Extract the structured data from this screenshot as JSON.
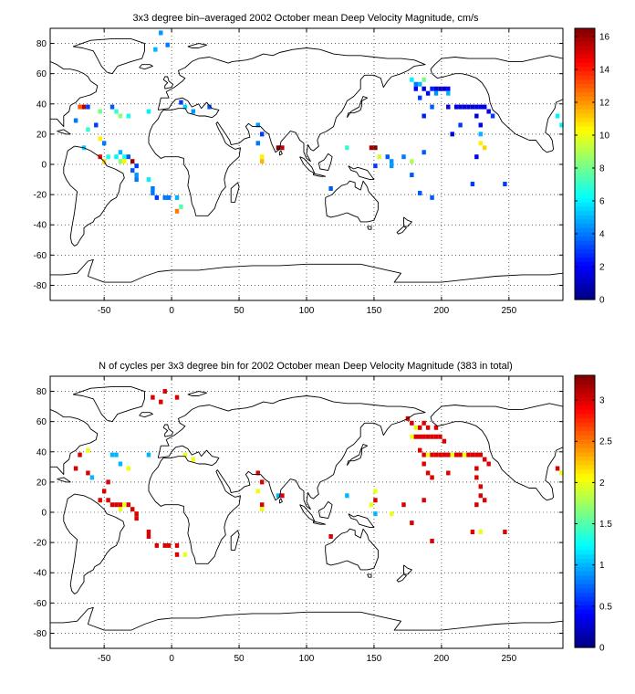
{
  "chart_data": [
    {
      "type": "heatmap",
      "title": "3x3 degree bin–averaged 2002 October mean Deep Velocity Magnitude, cm/s",
      "x_ticks": [
        "-50",
        "0",
        "50",
        "100",
        "150",
        "200",
        "250"
      ],
      "y_ticks": [
        "80",
        "60",
        "40",
        "20",
        "0",
        "-20",
        "-40",
        "-60",
        "-80"
      ],
      "xlim": [
        -90,
        290
      ],
      "ylim": [
        -90,
        90
      ],
      "grid": true,
      "colorbar": {
        "ticks": [
          "0",
          "2",
          "4",
          "6",
          "8",
          "10",
          "12",
          "14",
          "16"
        ],
        "range": [
          0,
          16.5
        ],
        "colormap": "jet"
      },
      "cells": [
        [
          -12,
          76,
          5.0
        ],
        [
          -8,
          87,
          4.5
        ],
        [
          -3,
          79,
          4.0
        ],
        [
          -68,
          38,
          13.0
        ],
        [
          -65,
          38,
          15.5
        ],
        [
          -62,
          38,
          3.0
        ],
        [
          -53,
          35,
          8.0
        ],
        [
          -44,
          38,
          3.5
        ],
        [
          -41,
          35,
          7.0
        ],
        [
          -38,
          32,
          8.5
        ],
        [
          -32,
          32,
          6.5
        ],
        [
          -56,
          26,
          3.0
        ],
        [
          -62,
          23,
          7.0
        ],
        [
          -53,
          17,
          10.5
        ],
        [
          -50,
          14,
          4.0
        ],
        [
          -65,
          11,
          5.5
        ],
        [
          -53,
          5,
          14.5
        ],
        [
          -47,
          5,
          6.5
        ],
        [
          -41,
          5,
          6.0
        ],
        [
          -35,
          5,
          6.5
        ],
        [
          -32,
          5,
          3.5
        ],
        [
          -38,
          8,
          5.0
        ],
        [
          -50,
          2,
          11.0
        ],
        [
          -38,
          2,
          8.5
        ],
        [
          -35,
          2,
          10.5
        ],
        [
          -29,
          2,
          16.0
        ],
        [
          -26,
          -1,
          3.0
        ],
        [
          -29,
          -4,
          3.5
        ],
        [
          -26,
          -7,
          4.5
        ],
        [
          -26,
          -10,
          4.0
        ],
        [
          -17,
          -10,
          6.0
        ],
        [
          -14,
          -16,
          4.0
        ],
        [
          -14,
          -19,
          4.0
        ],
        [
          -11,
          -22,
          3.0
        ],
        [
          -5,
          -22,
          4.0
        ],
        [
          -2,
          -22,
          4.0
        ],
        [
          4,
          -22,
          5.0
        ],
        [
          7,
          -28,
          7.5
        ],
        [
          4,
          -31,
          12.5
        ],
        [
          -17,
          35,
          6.0
        ],
        [
          7,
          41,
          3.0
        ],
        [
          10,
          38,
          5.5
        ],
        [
          16,
          35,
          4.5
        ],
        [
          28,
          38,
          3.5
        ],
        [
          64,
          26,
          4.5
        ],
        [
          67,
          20,
          3.0
        ],
        [
          64,
          14,
          4.0
        ],
        [
          79,
          11,
          16.5
        ],
        [
          82,
          11,
          15.5
        ],
        [
          67,
          5,
          10.5
        ],
        [
          67,
          2,
          11.5
        ],
        [
          130,
          11,
          7.0
        ],
        [
          148,
          11,
          16.0
        ],
        [
          151,
          11,
          16.5
        ],
        [
          154,
          5,
          9.5
        ],
        [
          160,
          5,
          3.5
        ],
        [
          172,
          5,
          4.0
        ],
        [
          187,
          8,
          3.5
        ],
        [
          151,
          -1,
          3.0
        ],
        [
          163,
          -1,
          4.5
        ],
        [
          118,
          -16,
          3.5
        ],
        [
          178,
          -7,
          3.5
        ],
        [
          184,
          -19,
          3.5
        ],
        [
          193,
          -22,
          3.5
        ],
        [
          223,
          -13,
          3.0
        ],
        [
          247,
          -13,
          3.0
        ],
        [
          178,
          56,
          6.0
        ],
        [
          181,
          53,
          4.0
        ],
        [
          184,
          53,
          5.0
        ],
        [
          187,
          56,
          8.0
        ],
        [
          181,
          50,
          2.0
        ],
        [
          187,
          50,
          1.5
        ],
        [
          193,
          50,
          2.5
        ],
        [
          196,
          50,
          1.5
        ],
        [
          199,
          50,
          1.0
        ],
        [
          202,
          50,
          1.5
        ],
        [
          205,
          50,
          2.0
        ],
        [
          190,
          47,
          2.0
        ],
        [
          196,
          47,
          4.5
        ],
        [
          205,
          47,
          5.0
        ],
        [
          184,
          44,
          3.0
        ],
        [
          193,
          38,
          3.5
        ],
        [
          187,
          32,
          2.5
        ],
        [
          205,
          38,
          1.5
        ],
        [
          211,
          38,
          1.5
        ],
        [
          214,
          38,
          1.5
        ],
        [
          217,
          38,
          1.5
        ],
        [
          220,
          38,
          1.5
        ],
        [
          223,
          38,
          1.5
        ],
        [
          226,
          38,
          1.5
        ],
        [
          229,
          38,
          1.5
        ],
        [
          232,
          38,
          1.5
        ],
        [
          235,
          35,
          1.5
        ],
        [
          238,
          32,
          3.0
        ],
        [
          214,
          26,
          3.0
        ],
        [
          208,
          20,
          1.5
        ],
        [
          226,
          32,
          1.5
        ],
        [
          229,
          26,
          2.0
        ],
        [
          229,
          20,
          5.0
        ],
        [
          229,
          14,
          10.5
        ],
        [
          226,
          5,
          2.0
        ],
        [
          232,
          11,
          11.0
        ],
        [
          178,
          2,
          9.0
        ],
        [
          163,
          2,
          4.5
        ],
        [
          286,
          32,
          6.0
        ],
        [
          289,
          26,
          6.0
        ],
        [
          -71,
          29,
          4.0
        ]
      ]
    },
    {
      "type": "heatmap",
      "title": "N of cycles per 3x3 degree bin for 2002 October mean Deep Velocity Magnitude (383 in total)",
      "x_ticks": [
        "-50",
        "0",
        "50",
        "100",
        "150",
        "200",
        "250"
      ],
      "y_ticks": [
        "80",
        "60",
        "40",
        "20",
        "0",
        "-20",
        "-40",
        "-60",
        "-80"
      ],
      "xlim": [
        -90,
        290
      ],
      "ylim": [
        -90,
        90
      ],
      "grid": true,
      "colorbar": {
        "ticks": [
          "0",
          "0.5",
          "1",
          "1.5",
          "2",
          "2.5",
          "3"
        ],
        "range": [
          0,
          3.3
        ],
        "colormap": "jet"
      },
      "cells": [
        [
          -14,
          76,
          3.0
        ],
        [
          -8,
          73,
          3.0
        ],
        [
          -5,
          80,
          3.0
        ],
        [
          4,
          76,
          3.0
        ],
        [
          -68,
          38,
          3.0
        ],
        [
          -62,
          41,
          2.0
        ],
        [
          -44,
          38,
          1.0
        ],
        [
          -41,
          38,
          1.0
        ],
        [
          -38,
          32,
          1.0
        ],
        [
          -32,
          29,
          2.0
        ],
        [
          -59,
          23,
          1.0
        ],
        [
          -47,
          20,
          3.0
        ],
        [
          -50,
          14,
          3.0
        ],
        [
          -53,
          8,
          3.0
        ],
        [
          -47,
          8,
          3.0
        ],
        [
          -44,
          5,
          3.0
        ],
        [
          -41,
          5,
          3.0
        ],
        [
          -38,
          5,
          3.0
        ],
        [
          -35,
          5,
          2.0
        ],
        [
          -32,
          5,
          3.0
        ],
        [
          -38,
          2,
          2.0
        ],
        [
          -29,
          2,
          3.0
        ],
        [
          -26,
          -1,
          3.0
        ],
        [
          -26,
          -4,
          3.0
        ],
        [
          -17,
          -13,
          3.0
        ],
        [
          -17,
          -16,
          3.0
        ],
        [
          -11,
          -22,
          3.0
        ],
        [
          -5,
          -22,
          3.0
        ],
        [
          -2,
          -22,
          3.0
        ],
        [
          4,
          -22,
          3.0
        ],
        [
          4,
          -28,
          3.0
        ],
        [
          10,
          -28,
          2.0
        ],
        [
          -17,
          38,
          1.0
        ],
        [
          10,
          38,
          2.0
        ],
        [
          16,
          35,
          2.0
        ],
        [
          64,
          26,
          3.0
        ],
        [
          67,
          20,
          3.0
        ],
        [
          64,
          14,
          2.0
        ],
        [
          79,
          11,
          1.0
        ],
        [
          82,
          11,
          3.0
        ],
        [
          67,
          5,
          3.0
        ],
        [
          67,
          2,
          2.0
        ],
        [
          130,
          11,
          1.0
        ],
        [
          151,
          14,
          2.0
        ],
        [
          151,
          8,
          3.0
        ],
        [
          148,
          5,
          2.0
        ],
        [
          172,
          5,
          3.0
        ],
        [
          187,
          8,
          3.0
        ],
        [
          178,
          -7,
          3.0
        ],
        [
          193,
          -19,
          3.0
        ],
        [
          223,
          -13,
          3.0
        ],
        [
          229,
          -13,
          2.0
        ],
        [
          247,
          -13,
          3.0
        ],
        [
          151,
          -1,
          1.0
        ],
        [
          163,
          -1,
          2.0
        ],
        [
          118,
          -16,
          3.0
        ],
        [
          175,
          62,
          3.0
        ],
        [
          178,
          59,
          3.0
        ],
        [
          181,
          56,
          2.0
        ],
        [
          184,
          56,
          3.0
        ],
        [
          187,
          59,
          3.0
        ],
        [
          190,
          56,
          3.0
        ],
        [
          196,
          56,
          3.0
        ],
        [
          178,
          50,
          2.0
        ],
        [
          181,
          50,
          3.0
        ],
        [
          184,
          50,
          3.0
        ],
        [
          187,
          50,
          3.0
        ],
        [
          190,
          50,
          3.0
        ],
        [
          193,
          50,
          3.0
        ],
        [
          196,
          50,
          3.0
        ],
        [
          199,
          50,
          3.0
        ],
        [
          202,
          47,
          3.0
        ],
        [
          184,
          41,
          3.0
        ],
        [
          187,
          38,
          3.0
        ],
        [
          190,
          38,
          2.0
        ],
        [
          193,
          38,
          3.0
        ],
        [
          196,
          38,
          3.0
        ],
        [
          199,
          38,
          3.0
        ],
        [
          202,
          38,
          3.0
        ],
        [
          205,
          38,
          3.0
        ],
        [
          208,
          38,
          2.0
        ],
        [
          211,
          38,
          3.0
        ],
        [
          214,
          38,
          3.0
        ],
        [
          217,
          38,
          2.0
        ],
        [
          220,
          38,
          3.0
        ],
        [
          223,
          38,
          3.0
        ],
        [
          226,
          38,
          3.0
        ],
        [
          229,
          38,
          3.0
        ],
        [
          232,
          35,
          3.0
        ],
        [
          235,
          32,
          3.0
        ],
        [
          187,
          32,
          3.0
        ],
        [
          190,
          26,
          3.0
        ],
        [
          193,
          23,
          3.0
        ],
        [
          205,
          26,
          3.0
        ],
        [
          226,
          29,
          3.0
        ],
        [
          226,
          23,
          3.0
        ],
        [
          229,
          17,
          3.0
        ],
        [
          229,
          11,
          3.0
        ],
        [
          226,
          5,
          3.0
        ],
        [
          232,
          8,
          3.0
        ],
        [
          286,
          29,
          3.0
        ],
        [
          289,
          26,
          2.0
        ],
        [
          -62,
          26,
          3.0
        ],
        [
          -71,
          29,
          3.0
        ]
      ]
    }
  ]
}
